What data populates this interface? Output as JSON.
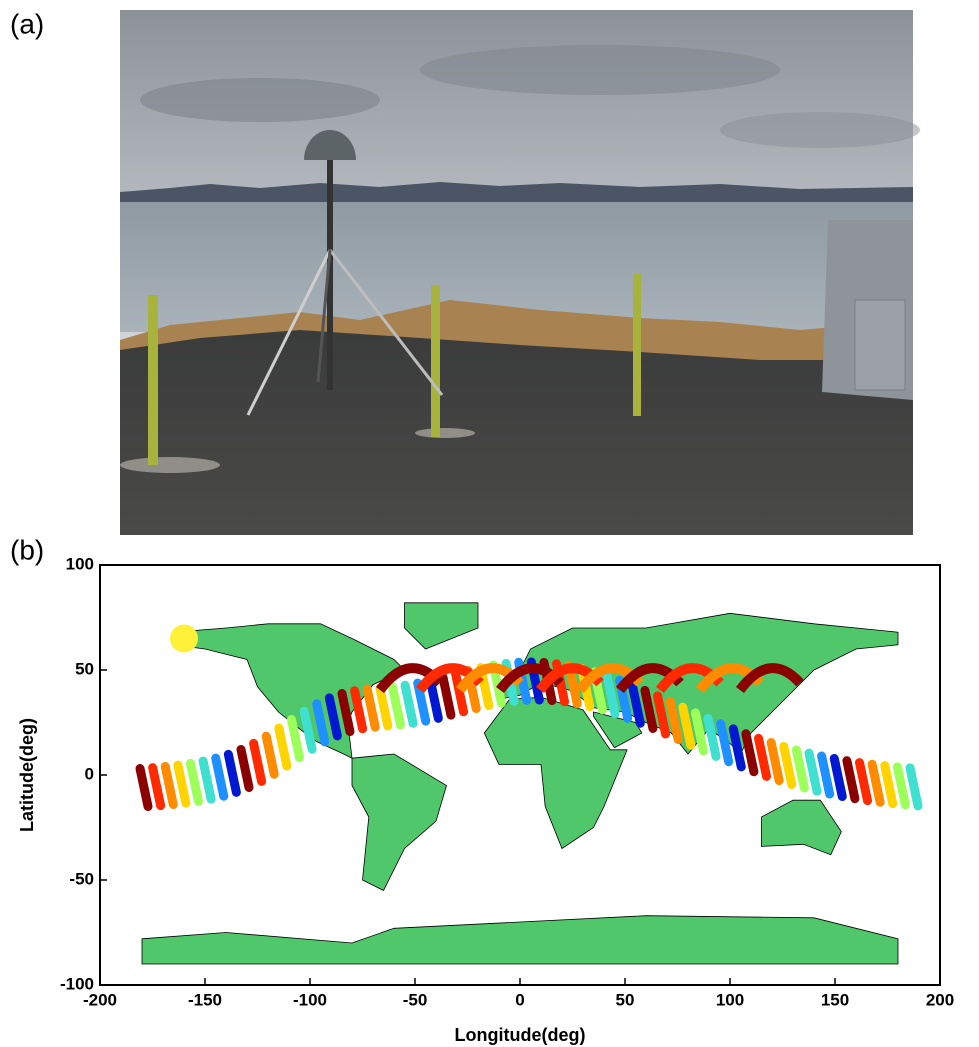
{
  "panels": {
    "a": "(a)",
    "b": "(b)"
  },
  "chart_data": {
    "type": "scatter",
    "xlabel": "Longitude(deg)",
    "ylabel": "Latitude(deg)",
    "xlim": [
      -200,
      200
    ],
    "ylim": [
      -100,
      100
    ],
    "xticks": [
      -200,
      -150,
      -100,
      -50,
      0,
      50,
      100,
      150,
      200
    ],
    "yticks": [
      -100,
      -50,
      0,
      50,
      100
    ],
    "x": [
      -160
    ],
    "values": [
      65
    ],
    "color": "#fff03a"
  }
}
